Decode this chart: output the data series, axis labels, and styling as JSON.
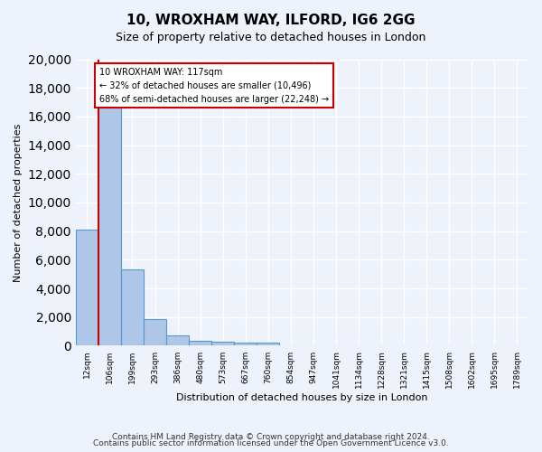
{
  "title": "10, WROXHAM WAY, ILFORD, IG6 2GG",
  "subtitle": "Size of property relative to detached houses in London",
  "xlabel": "Distribution of detached houses by size in London",
  "ylabel": "Number of detached properties",
  "bar_values": [
    8100,
    16600,
    5300,
    1850,
    700,
    350,
    280,
    230,
    190,
    0,
    0,
    0,
    0,
    0,
    0,
    0,
    0,
    0,
    0,
    0
  ],
  "bar_labels": [
    "12sqm",
    "106sqm",
    "199sqm",
    "293sqm",
    "386sqm",
    "480sqm",
    "573sqm",
    "667sqm",
    "760sqm",
    "854sqm",
    "947sqm",
    "1041sqm",
    "1134sqm",
    "1228sqm",
    "1321sqm",
    "1415sqm",
    "1508sqm",
    "1602sqm",
    "1695sqm",
    "1789sqm"
  ],
  "bar_color": "#aec6e8",
  "bar_edge_color": "#5599cc",
  "annotation_box_text": "10 WROXHAM WAY: 117sqm\n← 32% of detached houses are smaller (10,496)\n68% of semi-detached houses are larger (22,248) →",
  "annotation_box_color": "#ffffff",
  "annotation_box_edge_color": "#cc0000",
  "vline_color": "#cc0000",
  "ylim": [
    0,
    20000
  ],
  "yticks": [
    0,
    2000,
    4000,
    6000,
    8000,
    10000,
    12000,
    14000,
    16000,
    18000,
    20000
  ],
  "footer_line1": "Contains HM Land Registry data © Crown copyright and database right 2024.",
  "footer_line2": "Contains public sector information licensed under the Open Government Licence v3.0.",
  "bg_color": "#eef2fb",
  "plot_bg_color": "#eef2fb",
  "grid_color": "#ffffff",
  "num_bars": 20
}
